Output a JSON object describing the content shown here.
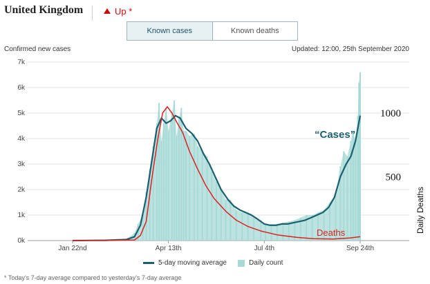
{
  "header": {
    "title": "United Kingdom",
    "trend_label": "Up *"
  },
  "tabs": [
    {
      "label": "Known cases",
      "active": true
    },
    {
      "label": "Known deaths",
      "active": false
    }
  ],
  "subtitle": "Confirmed new cases",
  "updated": "Updated: 12:00, 25th September 2020",
  "legend": {
    "line_label": "5-day moving average",
    "bar_label": "Daily count"
  },
  "footnote": "* Today's 7-day average compared to yesterday's 7-day average",
  "colors": {
    "bars": "#a7dad6",
    "moving_average": "#1b5f6e",
    "deaths": "#dd1f1f",
    "trend_up": "#cc0a0a"
  },
  "chart_data": {
    "type": "line",
    "x_start_label": "Jan 22nd",
    "x_end_label": "Sep 24th",
    "xticks": [
      "Jan 22nd",
      "Apr 13th",
      "Jul 4th",
      "Sep 24th"
    ],
    "yticks": [
      "0k",
      "1k",
      "2k",
      "3k",
      "4k",
      "5k",
      "6k",
      "7k"
    ],
    "ylim": [
      0,
      7000
    ],
    "y2ticks": [
      "500",
      "1000"
    ],
    "y2label": "Daily Deaths",
    "y2lim": [
      0,
      1400
    ],
    "annotations": {
      "cases": "“Cases”",
      "deaths": "Deaths"
    },
    "grid": "horizontal",
    "series": [
      {
        "name": "Daily count",
        "kind": "bar",
        "points": [
          [
            "Jan 22",
            0
          ],
          [
            "Feb 5",
            0
          ],
          [
            "Feb 19",
            5
          ],
          [
            "Mar 1",
            30
          ],
          [
            "Mar 8",
            60
          ],
          [
            "Mar 15",
            300
          ],
          [
            "Mar 18",
            650
          ],
          [
            "Mar 22",
            1000
          ],
          [
            "Mar 25",
            1900
          ],
          [
            "Mar 28",
            2800
          ],
          [
            "Mar 31",
            3700
          ],
          [
            "Apr 3",
            4600
          ],
          [
            "Apr 5",
            5400
          ],
          [
            "Apr 7",
            3900
          ],
          [
            "Apr 9",
            4600
          ],
          [
            "Apr 11",
            5200
          ],
          [
            "Apr 13",
            4300
          ],
          [
            "Apr 16",
            5000
          ],
          [
            "Apr 18",
            5500
          ],
          [
            "Apr 20",
            4100
          ],
          [
            "Apr 22",
            4800
          ],
          [
            "Apr 24",
            5200
          ],
          [
            "Apr 26",
            4300
          ],
          [
            "Apr 28",
            4300
          ],
          [
            "May 1",
            4100
          ],
          [
            "May 5",
            4200
          ],
          [
            "May 8",
            3700
          ],
          [
            "May 12",
            3500
          ],
          [
            "May 16",
            3300
          ],
          [
            "May 20",
            2700
          ],
          [
            "May 24",
            2300
          ],
          [
            "May 28",
            2000
          ],
          [
            "Jun 1",
            1600
          ],
          [
            "Jun 5",
            1600
          ],
          [
            "Jun 10",
            1200
          ],
          [
            "Jun 15",
            1100
          ],
          [
            "Jun 20",
            1100
          ],
          [
            "Jun 25",
            900
          ],
          [
            "Jul 1",
            800
          ],
          [
            "Jul 5",
            600
          ],
          [
            "Jul 10",
            650
          ],
          [
            "Jul 15",
            650
          ],
          [
            "Jul 20",
            700
          ],
          [
            "Jul 25",
            750
          ],
          [
            "Jul 30",
            800
          ],
          [
            "Aug 4",
            900
          ],
          [
            "Aug 9",
            1000
          ],
          [
            "Aug 14",
            1000
          ],
          [
            "Aug 19",
            1100
          ],
          [
            "Aug 24",
            1200
          ],
          [
            "Aug 29",
            1500
          ],
          [
            "Sep 3",
            1800
          ],
          [
            "Sep 7",
            2900
          ],
          [
            "Sep 10",
            3500
          ],
          [
            "Sep 13",
            3300
          ],
          [
            "Sep 16",
            3900
          ],
          [
            "Sep 18",
            4300
          ],
          [
            "Sep 20",
            3900
          ],
          [
            "Sep 22",
            4900
          ],
          [
            "Sep 23",
            6200
          ],
          [
            "Sep 24",
            6600
          ]
        ]
      },
      {
        "name": "5-day moving average",
        "kind": "line",
        "points": [
          [
            "Jan 22",
            0
          ],
          [
            "Feb 19",
            10
          ],
          [
            "Mar 8",
            40
          ],
          [
            "Mar 15",
            150
          ],
          [
            "Mar 20",
            600
          ],
          [
            "Mar 25",
            1700
          ],
          [
            "Mar 30",
            3200
          ],
          [
            "Apr 3",
            4400
          ],
          [
            "Apr 7",
            4800
          ],
          [
            "Apr 11",
            4600
          ],
          [
            "Apr 15",
            4700
          ],
          [
            "Apr 19",
            4900
          ],
          [
            "Apr 23",
            4800
          ],
          [
            "Apr 28",
            4400
          ],
          [
            "May 3",
            4200
          ],
          [
            "May 8",
            3900
          ],
          [
            "May 13",
            3400
          ],
          [
            "May 18",
            3000
          ],
          [
            "May 23",
            2500
          ],
          [
            "May 28",
            2000
          ],
          [
            "Jun 3",
            1600
          ],
          [
            "Jun 8",
            1350
          ],
          [
            "Jun 13",
            1200
          ],
          [
            "Jun 18",
            1100
          ],
          [
            "Jun 23",
            1000
          ],
          [
            "Jun 28",
            850
          ],
          [
            "Jul 4",
            650
          ],
          [
            "Jul 9",
            600
          ],
          [
            "Jul 14",
            600
          ],
          [
            "Jul 19",
            650
          ],
          [
            "Jul 24",
            650
          ],
          [
            "Jul 29",
            700
          ],
          [
            "Aug 3",
            750
          ],
          [
            "Aug 8",
            800
          ],
          [
            "Aug 13",
            900
          ],
          [
            "Aug 18",
            1000
          ],
          [
            "Aug 23",
            1100
          ],
          [
            "Aug 28",
            1300
          ],
          [
            "Sep 2",
            1700
          ],
          [
            "Sep 7",
            2500
          ],
          [
            "Sep 12",
            3000
          ],
          [
            "Sep 16",
            3300
          ],
          [
            "Sep 20",
            3900
          ],
          [
            "Sep 24",
            4900
          ]
        ]
      },
      {
        "name": "Deaths",
        "kind": "line",
        "axis": "right",
        "points": [
          [
            "Jan 22",
            0
          ],
          [
            "Mar 15",
            5
          ],
          [
            "Mar 20",
            40
          ],
          [
            "Mar 25",
            150
          ],
          [
            "Mar 30",
            500
          ],
          [
            "Apr 4",
            800
          ],
          [
            "Apr 8",
            1000
          ],
          [
            "Apr 12",
            1050
          ],
          [
            "Apr 16",
            1000
          ],
          [
            "Apr 20",
            930
          ],
          [
            "Apr 25",
            850
          ],
          [
            "May 1",
            700
          ],
          [
            "May 8",
            560
          ],
          [
            "May 15",
            430
          ],
          [
            "May 22",
            330
          ],
          [
            "Jun 1",
            230
          ],
          [
            "Jun 10",
            160
          ],
          [
            "Jun 20",
            110
          ],
          [
            "Jul 1",
            75
          ],
          [
            "Jul 15",
            45
          ],
          [
            "Aug 1",
            25
          ],
          [
            "Aug 15",
            15
          ],
          [
            "Sep 1",
            12
          ],
          [
            "Sep 15",
            20
          ],
          [
            "Sep 24",
            30
          ]
        ]
      }
    ]
  }
}
